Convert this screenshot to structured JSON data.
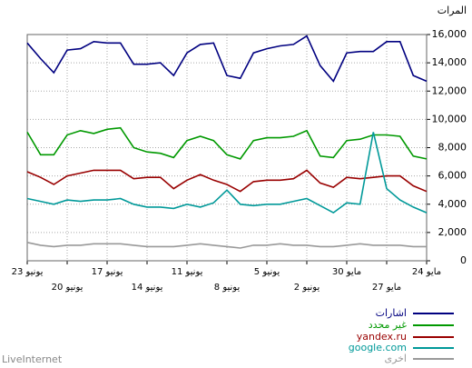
{
  "chart_data": {
    "type": "line",
    "title": "المرات",
    "categories": [
      "23 يونيو",
      null,
      null,
      "20 يونيو",
      null,
      null,
      "17 يونيو",
      null,
      null,
      "14 يونيو",
      null,
      null,
      "11 يونيو",
      null,
      null,
      "8 يونيو",
      null,
      null,
      "5 يونيو",
      null,
      null,
      "2 يونيو",
      null,
      null,
      "30 مايو",
      null,
      null,
      "27 مايو",
      null,
      null,
      "24 مايو"
    ],
    "series": [
      {
        "name": "اشارات",
        "color": "#000080",
        "values": [
          15400,
          14300,
          13300,
          14900,
          15000,
          15500,
          15400,
          15400,
          13900,
          13900,
          14000,
          13100,
          14700,
          15300,
          15400,
          13100,
          12900,
          14700,
          15000,
          15200,
          15300,
          15900,
          13800,
          12700,
          14700,
          14800,
          14800,
          15500,
          15500,
          13100,
          12700
        ]
      },
      {
        "name": "غير محدد",
        "color": "#009900",
        "values": [
          9100,
          7500,
          7500,
          8900,
          9200,
          9000,
          9300,
          9400,
          8000,
          7700,
          7600,
          7300,
          8500,
          8800,
          8500,
          7500,
          7200,
          8500,
          8700,
          8700,
          8800,
          9200,
          7400,
          7300,
          8500,
          8600,
          8900,
          8900,
          8800,
          7400,
          7200
        ]
      },
      {
        "name": "yandex.ru",
        "color": "#990000",
        "values": [
          6300,
          5900,
          5400,
          6000,
          6200,
          6400,
          6400,
          6400,
          5800,
          5900,
          5900,
          5100,
          5700,
          6100,
          5700,
          5400,
          4900,
          5600,
          5700,
          5700,
          5800,
          6400,
          5500,
          5200,
          5900,
          5800,
          5900,
          6000,
          6000,
          5300,
          4900
        ]
      },
      {
        "name": "google.com",
        "color": "#009999",
        "values": [
          4400,
          4200,
          4000,
          4300,
          4200,
          4300,
          4300,
          4400,
          4000,
          3800,
          3800,
          3700,
          4000,
          3800,
          4100,
          5000,
          4000,
          3900,
          4000,
          4000,
          4200,
          4400,
          3900,
          3400,
          4100,
          4000,
          9100,
          5100,
          4300,
          3800,
          3400
        ]
      },
      {
        "name": "اخرى",
        "color": "#999999",
        "values": [
          1300,
          1100,
          1000,
          1100,
          1100,
          1200,
          1200,
          1200,
          1100,
          1000,
          1000,
          1000,
          1100,
          1200,
          1100,
          1000,
          900,
          1100,
          1100,
          1200,
          1100,
          1100,
          1000,
          1000,
          1100,
          1200,
          1100,
          1100,
          1100,
          1000,
          1000
        ]
      }
    ],
    "ylim": [
      0,
      16000
    ],
    "yticks": [
      0,
      {
        "value": 2000,
        "label": "2,000"
      },
      {
        "value": 4000,
        "label": "4,000"
      },
      {
        "value": 6000,
        "label": "6,000"
      },
      {
        "value": 8000,
        "label": "8,000"
      },
      {
        "value": 10000,
        "label": "10,000"
      },
      {
        "value": 12000,
        "label": "12,000"
      },
      {
        "value": 14000,
        "label": "14,000"
      },
      {
        "value": 16000,
        "label": "16,000"
      }
    ],
    "grid": true,
    "legend": "bottom-right",
    "source": "LiveInternet"
  }
}
